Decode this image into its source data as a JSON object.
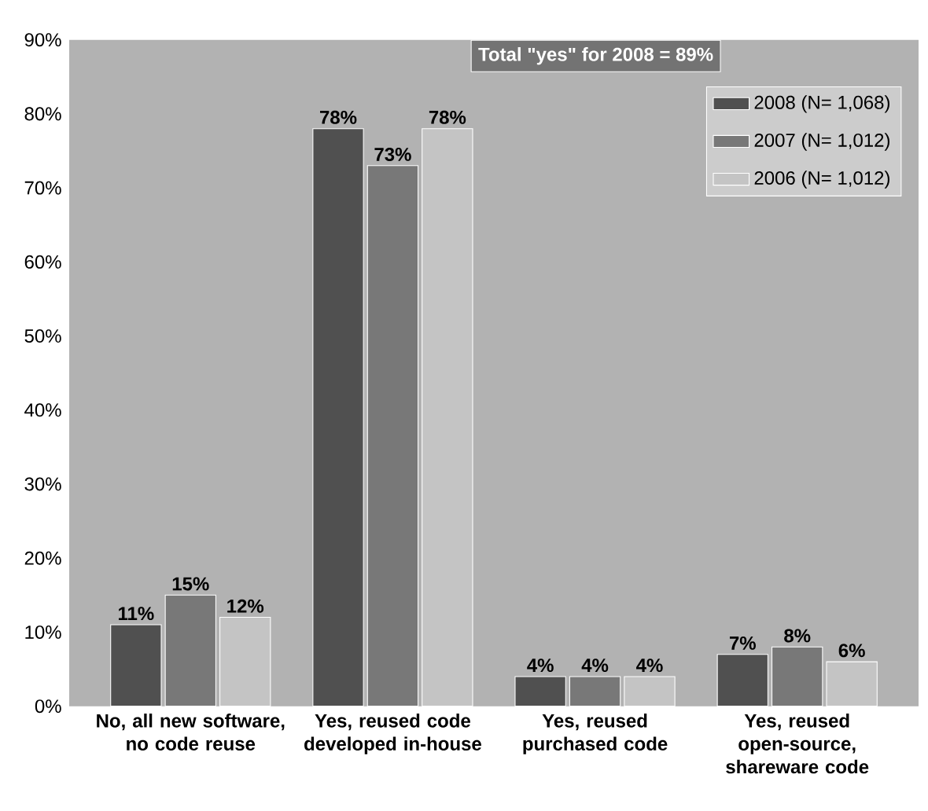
{
  "chart_data": {
    "type": "bar",
    "categories": [
      "No, all new software, no code reuse",
      "Yes, reused code developed in-house",
      "Yes, reused purchased code",
      "Yes, reused open-source, shareware code"
    ],
    "series": [
      {
        "name": "2008 (N= 1,068)",
        "color": "#505050",
        "values": [
          11,
          78,
          4,
          7
        ],
        "value_labels": [
          "11%",
          "78%",
          "4%",
          "7%"
        ]
      },
      {
        "name": "2007 (N= 1,012)",
        "color": "#787878",
        "values": [
          15,
          73,
          4,
          8
        ],
        "value_labels": [
          "15%",
          "73%",
          "4%",
          "8%"
        ]
      },
      {
        "name": "2006 (N= 1,012)",
        "color": "#c4c4c4",
        "values": [
          12,
          78,
          4,
          6
        ],
        "value_labels": [
          "12%",
          "78%",
          "4%",
          "6%"
        ]
      }
    ],
    "ylim": [
      0,
      90
    ],
    "yticks": [
      {
        "value": 0,
        "label": "0%"
      },
      {
        "value": 10,
        "label": "10%"
      },
      {
        "value": 20,
        "label": "20%"
      },
      {
        "value": 30,
        "label": "30%"
      },
      {
        "value": 40,
        "label": "40%"
      },
      {
        "value": 50,
        "label": "50%"
      },
      {
        "value": 60,
        "label": "60%"
      },
      {
        "value": 70,
        "label": "70%"
      },
      {
        "value": 80,
        "label": "80%"
      },
      {
        "value": 90,
        "label": "90%"
      }
    ],
    "annotations": [
      "Total \"yes\" for 2008 = 89%"
    ],
    "legend": "top right"
  }
}
